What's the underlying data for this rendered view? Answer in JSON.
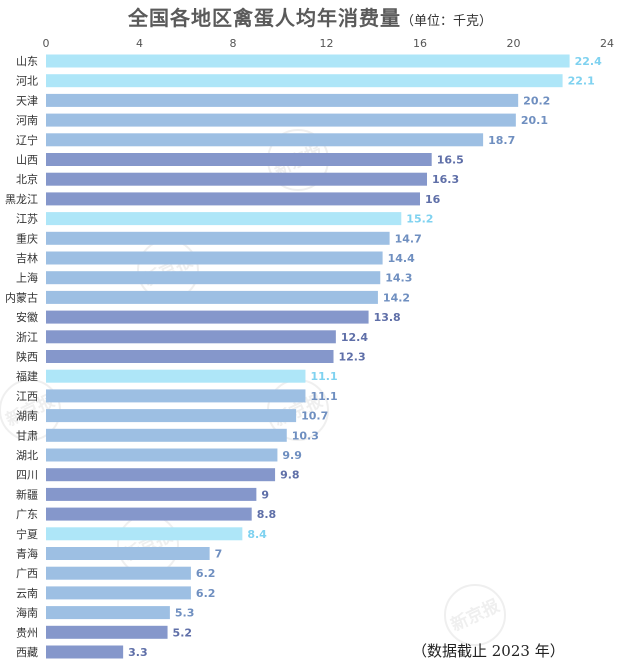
{
  "chart_data": {
    "type": "bar",
    "orientation": "horizontal",
    "title": "全国各地区禽蛋人均年消费量",
    "unit_note": "（单位：千克）",
    "footnote": "（数据截止 2023 年）",
    "xlim": [
      0,
      24
    ],
    "x_ticks": [
      "0",
      "4",
      "8",
      "12",
      "16",
      "20",
      "24"
    ],
    "x_tick_values": [
      0,
      4,
      8,
      12,
      16,
      20,
      24
    ],
    "grid": false,
    "categories": [
      "山东",
      "河北",
      "天津",
      "河南",
      "辽宁",
      "山西",
      "北京",
      "黑龙江",
      "江苏",
      "重庆",
      "吉林",
      "上海",
      "内蒙古",
      "安徽",
      "浙江",
      "陕西",
      "福建",
      "江西",
      "湖南",
      "甘肃",
      "湖北",
      "四川",
      "新疆",
      "广东",
      "宁夏",
      "青海",
      "广西",
      "云南",
      "海南",
      "贵州",
      "西藏"
    ],
    "values": [
      22.4,
      22.1,
      20.2,
      20.1,
      18.7,
      16.5,
      16.3,
      16,
      15.2,
      14.7,
      14.4,
      14.3,
      14.2,
      13.8,
      12.4,
      12.3,
      11.1,
      11.1,
      10.7,
      10.3,
      9.9,
      9.8,
      9,
      8.8,
      8.4,
      7,
      6.2,
      6.2,
      5.3,
      5.2,
      3.3
    ],
    "value_labels": [
      "22.4",
      "22.1",
      "20.2",
      "20.1",
      "18.7",
      "16.5",
      "16.3",
      "16",
      "15.2",
      "14.7",
      "14.4",
      "14.3",
      "14.2",
      "13.8",
      "12.4",
      "12.3",
      "11.1",
      "11.1",
      "10.7",
      "10.3",
      "9.9",
      "9.8",
      "9",
      "8.8",
      "8.4",
      "7",
      "6.2",
      "6.2",
      "5.3",
      "5.2",
      "3.3"
    ],
    "bar_colors": [
      "#aee6f8",
      "#aee6f8",
      "#9dbfe3",
      "#9dbfe3",
      "#9dbfe3",
      "#8597cb",
      "#8597cb",
      "#8597cb",
      "#aee6f8",
      "#9dbfe3",
      "#9dbfe3",
      "#9dbfe3",
      "#9dbfe3",
      "#8597cb",
      "#8597cb",
      "#8597cb",
      "#aee6f8",
      "#9dbfe3",
      "#9dbfe3",
      "#9dbfe3",
      "#9dbfe3",
      "#8597cb",
      "#8597cb",
      "#8597cb",
      "#aee6f8",
      "#9dbfe3",
      "#9dbfe3",
      "#9dbfe3",
      "#9dbfe3",
      "#8597cb",
      "#8597cb"
    ],
    "label_colors": [
      "#7fd2f0",
      "#7fd2f0",
      "#6f8fc0",
      "#6f8fc0",
      "#6f8fc0",
      "#5f6fa8",
      "#5f6fa8",
      "#5f6fa8",
      "#7fd2f0",
      "#6f8fc0",
      "#6f8fc0",
      "#6f8fc0",
      "#6f8fc0",
      "#5f6fa8",
      "#5f6fa8",
      "#5f6fa8",
      "#7fd2f0",
      "#6f8fc0",
      "#6f8fc0",
      "#6f8fc0",
      "#6f8fc0",
      "#5f6fa8",
      "#5f6fa8",
      "#5f6fa8",
      "#7fd2f0",
      "#6f8fc0",
      "#6f8fc0",
      "#6f8fc0",
      "#6f8fc0",
      "#5f6fa8",
      "#5f6fa8"
    ]
  },
  "watermark_text": "新京报"
}
